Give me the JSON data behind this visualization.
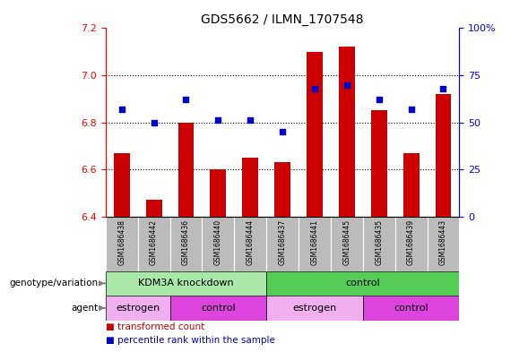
{
  "title": "GDS5662 / ILMN_1707548",
  "samples": [
    "GSM1686438",
    "GSM1686442",
    "GSM1686436",
    "GSM1686440",
    "GSM1686444",
    "GSM1686437",
    "GSM1686441",
    "GSM1686445",
    "GSM1686435",
    "GSM1686439",
    "GSM1686443"
  ],
  "transformed_counts": [
    6.67,
    6.47,
    6.8,
    6.6,
    6.65,
    6.63,
    7.1,
    7.12,
    6.85,
    6.67,
    6.92
  ],
  "percentile_ranks": [
    57,
    50,
    62,
    51,
    51,
    45,
    68,
    70,
    62,
    57,
    68
  ],
  "ylim_left": [
    6.4,
    7.2
  ],
  "ylim_right": [
    0,
    100
  ],
  "yticks_left": [
    6.4,
    6.6,
    6.8,
    7.0,
    7.2
  ],
  "yticks_right": [
    0,
    25,
    50,
    75,
    100
  ],
  "ytick_labels_right": [
    "0",
    "25",
    "50",
    "75",
    "100%"
  ],
  "bar_color": "#cc0000",
  "dot_color": "#0000cc",
  "bar_width": 0.5,
  "background_color": "#ffffff",
  "plot_bg_color": "#ffffff",
  "geno_groups": [
    {
      "label": "KDM3A knockdown",
      "xstart": -0.5,
      "xend": 4.5,
      "color": "#aae8aa"
    },
    {
      "label": "control",
      "xstart": 4.5,
      "xend": 10.5,
      "color": "#55cc55"
    }
  ],
  "agent_groups": [
    {
      "label": "estrogen",
      "xstart": -0.5,
      "xend": 1.5,
      "color": "#f0b0f0"
    },
    {
      "label": "control",
      "xstart": 1.5,
      "xend": 4.5,
      "color": "#dd44dd"
    },
    {
      "label": "estrogen",
      "xstart": 4.5,
      "xend": 7.5,
      "color": "#f0b0f0"
    },
    {
      "label": "control",
      "xstart": 7.5,
      "xend": 10.5,
      "color": "#dd44dd"
    }
  ],
  "gsm_bg_color": "#bbbbbb",
  "legend_red_label": "transformed count",
  "legend_blue_label": "percentile rank within the sample",
  "geno_label": "genotype/variation",
  "agent_label": "agent"
}
